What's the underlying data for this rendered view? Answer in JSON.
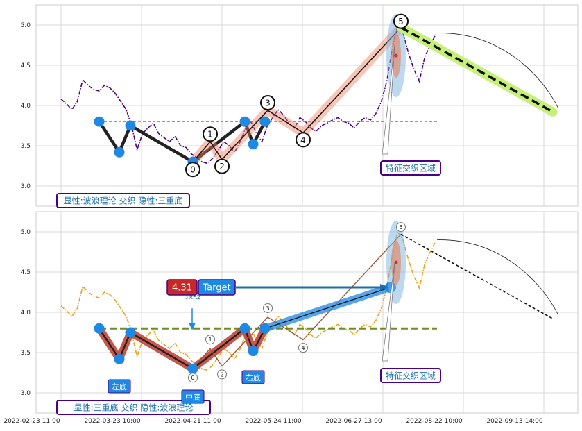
{
  "chart_data": [
    {
      "type": "line",
      "panel": "top",
      "ylim": [
        2.75,
        5.25
      ],
      "yticks": [
        "3.0",
        "3.5",
        "4.0",
        "4.5",
        "5.0"
      ],
      "grid": true,
      "price_series": {
        "color": "#4b0082",
        "style": "dashdot",
        "values": [
          4.08,
          4.02,
          3.95,
          4.05,
          4.32,
          4.25,
          4.2,
          4.18,
          4.25,
          4.22,
          4.15,
          4.05,
          3.95,
          3.75,
          3.45,
          3.65,
          3.72,
          3.78,
          3.65,
          3.6,
          3.55,
          3.62,
          3.5,
          3.48,
          3.4,
          3.35,
          3.3,
          3.28,
          3.35,
          3.45,
          3.55,
          3.5,
          3.42,
          3.55,
          3.72,
          3.8,
          3.65,
          3.55,
          3.75,
          3.85,
          3.95,
          3.88,
          3.78,
          3.72,
          3.85,
          3.8,
          3.72,
          3.68,
          3.75,
          3.78,
          3.82,
          3.85,
          3.8,
          3.78,
          3.72,
          3.8,
          3.85,
          3.82,
          3.9,
          4.05,
          4.3,
          4.7,
          5.0,
          4.9,
          4.65,
          4.45,
          4.3,
          4.6,
          4.75,
          4.88
        ]
      },
      "support_line": {
        "value": 3.8,
        "color": "#6b8e23"
      },
      "wave_points": [
        {
          "label": "0",
          "value": 3.3
        },
        {
          "label": "1",
          "value": 3.55
        },
        {
          "label": "2",
          "value": 3.33
        },
        {
          "label": "3",
          "value": 3.94
        },
        {
          "label": "4",
          "value": 3.66
        },
        {
          "label": "5",
          "value": 4.97
        }
      ],
      "triple_bottom_points": [
        3.8,
        3.42,
        3.75,
        3.3,
        3.8,
        3.52,
        3.8
      ],
      "forecast": {
        "start": 4.97,
        "end": 3.92
      },
      "annotation": "特征交织区域",
      "footer_label": "显性:波浪理论 交织 隐性:三重底"
    },
    {
      "type": "line",
      "panel": "bottom",
      "ylim": [
        2.75,
        5.25
      ],
      "yticks": [
        "3.0",
        "3.5",
        "4.0",
        "4.5",
        "5.0"
      ],
      "grid": true,
      "price_series": {
        "color": "#e8a317",
        "style": "dashdot"
      },
      "neckline": {
        "value": 3.8,
        "color": "#6b8e23"
      },
      "target_value": "4.31",
      "target_label": "Target",
      "neckline_label": "颈线",
      "bottom_labels": [
        "左底",
        "中底",
        "右底"
      ],
      "wave_points": [
        {
          "label": "0",
          "value": 3.3
        },
        {
          "label": "1",
          "value": 3.55
        },
        {
          "label": "2",
          "value": 3.33
        },
        {
          "label": "3",
          "value": 3.94
        },
        {
          "label": "4",
          "value": 3.66
        },
        {
          "label": "5",
          "value": 4.97
        }
      ],
      "triple_bottom_points": [
        3.8,
        3.42,
        3.75,
        3.3,
        3.8,
        3.52,
        3.8
      ],
      "forecast": {
        "start": 4.97,
        "end": 3.92
      },
      "annotation": "特征交织区域",
      "footer_label": "显性:三重底 交织 隐性:波浪理论"
    }
  ],
  "x_axis": {
    "tick_labels": [
      "2022-02-23 11:00",
      "2022-03-23 10:00",
      "2022-04-21 11:00",
      "2022-05-24 11:00",
      "2022-06-27 13:00",
      "2022-08-22 10:00",
      "2022-09-13 14:00"
    ]
  }
}
